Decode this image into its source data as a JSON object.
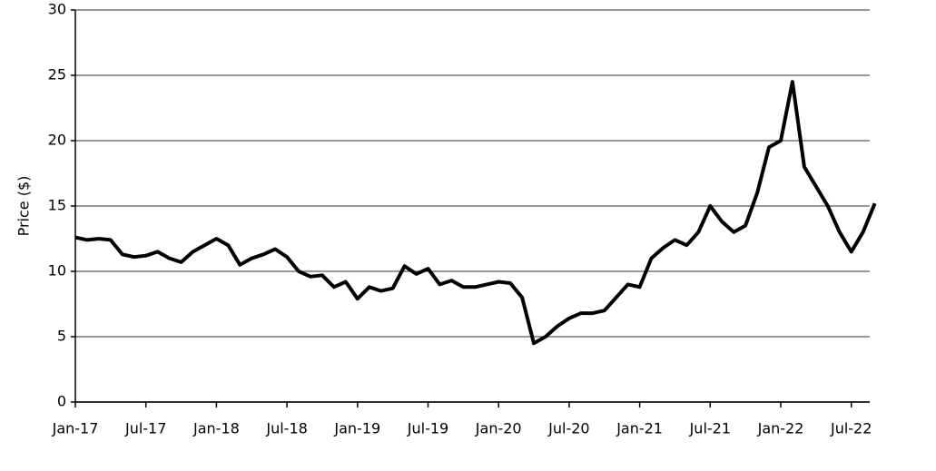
{
  "chart_data": {
    "type": "line",
    "y_label": "Price ($)",
    "categories": [
      "Jan-17",
      null,
      null,
      null,
      null,
      null,
      "Jul-17",
      null,
      null,
      null,
      null,
      null,
      "Jan-18",
      null,
      null,
      null,
      null,
      null,
      "Jul-18",
      null,
      null,
      null,
      null,
      null,
      "Jan-19",
      null,
      null,
      null,
      null,
      null,
      "Jul-19",
      null,
      null,
      null,
      null,
      null,
      "Jan-20",
      null,
      null,
      null,
      null,
      null,
      "Jul-20",
      null,
      null,
      null,
      null,
      null,
      "Jan-21",
      null,
      null,
      null,
      null,
      null,
      "Jul-21",
      null,
      null,
      null,
      null,
      null,
      "Jan-22",
      null,
      null,
      null,
      null,
      null,
      "Jul-22",
      null,
      null
    ],
    "series": [
      {
        "color": "#000000",
        "values": [
          12.6,
          12.4,
          12.5,
          12.4,
          11.3,
          11.1,
          11.2,
          11.5,
          11.0,
          10.7,
          11.5,
          12.0,
          12.5,
          12.0,
          10.5,
          11.0,
          11.3,
          11.7,
          11.1,
          10.0,
          9.6,
          9.7,
          8.8,
          9.2,
          7.9,
          8.8,
          8.5,
          8.7,
          10.4,
          9.8,
          10.2,
          9.0,
          9.3,
          8.8,
          8.8,
          9.0,
          9.2,
          9.1,
          8.0,
          4.5,
          5.0,
          5.8,
          6.4,
          6.8,
          6.8,
          7.0,
          8.0,
          9.0,
          8.8,
          11.0,
          11.8,
          12.4,
          12.0,
          13.0,
          15.0,
          13.8,
          13.0,
          13.5,
          16.0,
          19.5,
          20.0,
          24.5,
          18.0,
          16.5,
          15.0,
          13.0,
          11.5,
          13.0,
          15.2
        ]
      }
    ],
    "ylim": [
      0,
      30
    ],
    "yticks": [
      0,
      5,
      10,
      15,
      20,
      25,
      30
    ],
    "grid": true
  }
}
